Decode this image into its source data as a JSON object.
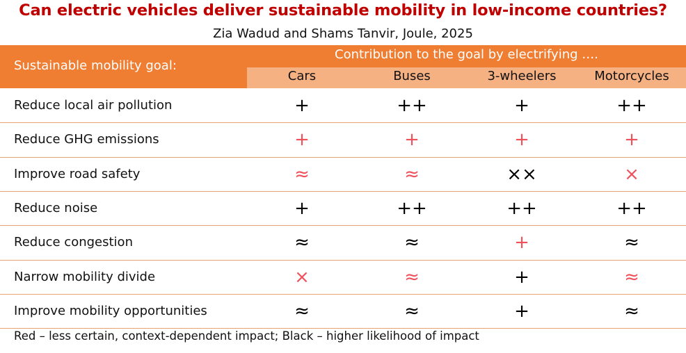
{
  "chart_data": {
    "type": "table",
    "title": "Can electric vehicles deliver sustainable mobility in low-income countries?",
    "subtitle": "Zia Wadud and Shams Tanvir, Joule, 2025",
    "row_header": "Sustainable mobility goal:",
    "column_group_header": "Contribution to the goal by electrifying ….",
    "columns": [
      "Cars",
      "Buses",
      "3-wheelers",
      "Motorcycles"
    ],
    "rows": [
      {
        "goal": "Reduce local air pollution",
        "cells": [
          {
            "symbol": "+",
            "certainty": "black"
          },
          {
            "symbol": "++",
            "certainty": "black"
          },
          {
            "symbol": "+",
            "certainty": "black"
          },
          {
            "symbol": "++",
            "certainty": "black"
          }
        ]
      },
      {
        "goal": "Reduce GHG emissions",
        "cells": [
          {
            "symbol": "+",
            "certainty": "red"
          },
          {
            "symbol": "+",
            "certainty": "red"
          },
          {
            "symbol": "+",
            "certainty": "red"
          },
          {
            "symbol": "+",
            "certainty": "red"
          }
        ]
      },
      {
        "goal": "Improve road safety",
        "cells": [
          {
            "symbol": "≈",
            "certainty": "red"
          },
          {
            "symbol": "≈",
            "certainty": "red"
          },
          {
            "symbol": "××",
            "certainty": "black"
          },
          {
            "symbol": "×",
            "certainty": "red"
          }
        ]
      },
      {
        "goal": "Reduce noise",
        "cells": [
          {
            "symbol": "+",
            "certainty": "black"
          },
          {
            "symbol": "++",
            "certainty": "black"
          },
          {
            "symbol": "++",
            "certainty": "black"
          },
          {
            "symbol": "++",
            "certainty": "black"
          }
        ]
      },
      {
        "goal": "Reduce congestion",
        "cells": [
          {
            "symbol": "≈",
            "certainty": "black"
          },
          {
            "symbol": "≈",
            "certainty": "black"
          },
          {
            "symbol": "+",
            "certainty": "red"
          },
          {
            "symbol": "≈",
            "certainty": "black"
          }
        ]
      },
      {
        "goal": "Narrow mobility divide",
        "cells": [
          {
            "symbol": "×",
            "certainty": "red"
          },
          {
            "symbol": "≈",
            "certainty": "red"
          },
          {
            "symbol": "+",
            "certainty": "black"
          },
          {
            "symbol": "≈",
            "certainty": "red"
          }
        ]
      },
      {
        "goal": "Improve mobility opportunities",
        "cells": [
          {
            "symbol": "≈",
            "certainty": "black"
          },
          {
            "symbol": "≈",
            "certainty": "black"
          },
          {
            "symbol": "+",
            "certainty": "black"
          },
          {
            "symbol": "≈",
            "certainty": "black"
          }
        ]
      }
    ],
    "footnote": "Red – less certain, context-dependent impact; Black – higher likelihood of impact"
  },
  "colors": {
    "title": "#c00000",
    "header_band": "#ef7d32",
    "sub_header_band": "#f6b183",
    "red_symbol": "#f0505a",
    "black_symbol": "#000000",
    "row_divider": "#e7a272"
  }
}
